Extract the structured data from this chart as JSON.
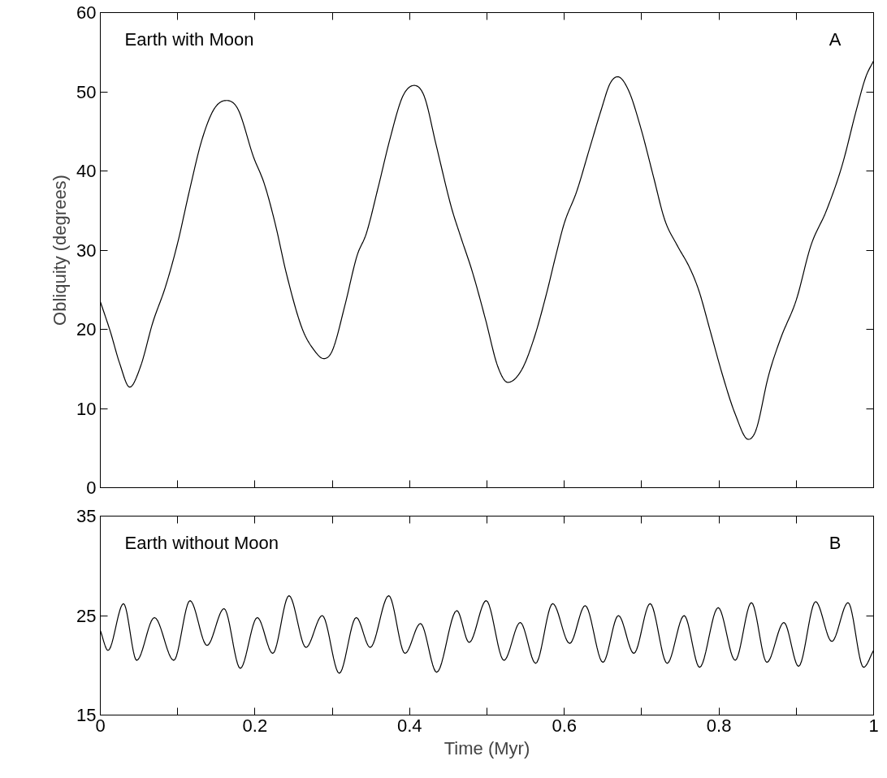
{
  "chart_data": [
    {
      "type": "line",
      "ylabel": "Obliquity (degrees)",
      "annotations": [
        "Earth with Moon",
        "A"
      ],
      "xlim": [
        0,
        1
      ],
      "xticks": [
        0,
        {
          "value": 0.1,
          "label": null
        },
        0.2,
        {
          "value": 0.3,
          "label": null
        },
        0.4,
        {
          "value": 0.5,
          "label": null
        },
        0.6,
        {
          "value": 0.7,
          "label": null
        },
        0.8,
        {
          "value": 0.9,
          "label": null
        },
        1
      ],
      "ylim": [
        0,
        60
      ],
      "yticks": [
        0,
        10,
        20,
        30,
        40,
        50,
        60
      ],
      "tick_labels": "y",
      "series": [
        {
          "color": "#000000",
          "x": [
            0,
            0.013,
            0.025,
            0.038,
            0.052,
            0.068,
            0.084,
            0.1,
            0.115,
            0.131,
            0.147,
            0.163,
            0.178,
            0.198,
            0.212,
            0.226,
            0.241,
            0.261,
            0.277,
            0.289,
            0.3,
            0.316,
            0.332,
            0.344,
            0.359,
            0.375,
            0.391,
            0.406,
            0.419,
            0.434,
            0.454,
            0.466,
            0.481,
            0.498,
            0.514,
            0.527,
            0.545,
            0.561,
            0.577,
            0.589,
            0.6,
            0.616,
            0.632,
            0.648,
            0.659,
            0.669,
            0.683,
            0.699,
            0.715,
            0.73,
            0.746,
            0.762,
            0.774,
            0.789,
            0.805,
            0.821,
            0.838,
            0.848,
            0.864,
            0.88,
            0.9,
            0.919,
            0.939,
            0.959,
            0.978,
            0.99,
            1.0
          ],
          "values": [
            23.5,
            19.7,
            15.7,
            12.7,
            15.3,
            20.9,
            25.3,
            30.9,
            37.4,
            43.8,
            47.8,
            48.9,
            47.8,
            41.8,
            38.4,
            33.4,
            26.9,
            20.1,
            17.3,
            16.3,
            17.3,
            22.9,
            29.3,
            32.1,
            37.8,
            44.2,
            49.4,
            50.8,
            49.4,
            43.4,
            35.4,
            31.7,
            27.3,
            21.3,
            15.3,
            13.3,
            14.9,
            18.9,
            24.5,
            29.3,
            33.4,
            37.4,
            42.6,
            47.8,
            51.0,
            51.9,
            50.2,
            45.4,
            39.4,
            33.8,
            30.6,
            27.8,
            24.9,
            19.7,
            14.1,
            9.3,
            6.1,
            7.3,
            14.1,
            18.9,
            23.7,
            30.6,
            35.0,
            40.6,
            47.8,
            51.9,
            53.9
          ]
        }
      ]
    },
    {
      "type": "line",
      "xlabel": "Time (Myr)",
      "annotations": [
        "Earth without Moon",
        "B"
      ],
      "xlim": [
        0,
        1
      ],
      "xticks": [
        0,
        {
          "value": 0.1,
          "label": null
        },
        0.2,
        {
          "value": 0.3,
          "label": null
        },
        0.4,
        {
          "value": 0.5,
          "label": null
        },
        0.6,
        {
          "value": 0.7,
          "label": null
        },
        0.8,
        {
          "value": 0.9,
          "label": null
        },
        1
      ],
      "ylim": [
        15,
        35
      ],
      "yticks": [
        15,
        25,
        35
      ],
      "series": [
        {
          "color": "#000000",
          "x": [
            0,
            0.01,
            0.03,
            0.047,
            0.07,
            0.095,
            0.116,
            0.138,
            0.16,
            0.181,
            0.203,
            0.223,
            0.244,
            0.266,
            0.287,
            0.309,
            0.331,
            0.349,
            0.373,
            0.394,
            0.414,
            0.435,
            0.461,
            0.477,
            0.499,
            0.522,
            0.543,
            0.563,
            0.585,
            0.607,
            0.627,
            0.65,
            0.67,
            0.69,
            0.711,
            0.733,
            0.755,
            0.775,
            0.799,
            0.821,
            0.842,
            0.862,
            0.884,
            0.903,
            0.925,
            0.946,
            0.967,
            0.987,
            1.0
          ],
          "values": [
            23.5,
            21.5,
            26.2,
            20.5,
            24.8,
            20.5,
            26.5,
            22,
            25.7,
            19.7,
            24.8,
            21.2,
            27,
            21.8,
            25,
            19.2,
            24.8,
            21.8,
            27,
            21.2,
            24.2,
            19.3,
            25.5,
            22.3,
            26.5,
            20.5,
            24.3,
            20.2,
            26.2,
            22.2,
            26,
            20.3,
            25,
            21.2,
            26.2,
            20.2,
            25,
            19.8,
            25.8,
            20.5,
            26.3,
            20.3,
            24.3,
            19.9,
            26.4,
            22.4,
            26.3,
            19.8,
            21.5
          ]
        }
      ]
    }
  ]
}
